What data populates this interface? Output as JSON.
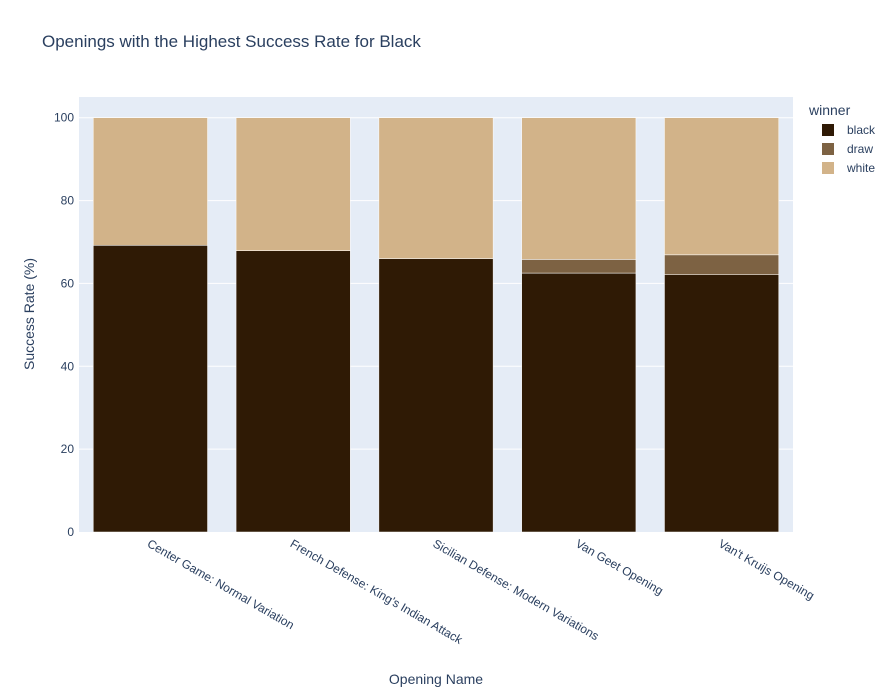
{
  "chart_data": {
    "type": "bar",
    "barmode": "stack",
    "title": "Openings with the Highest Success Rate for Black",
    "xlabel": "Opening Name",
    "ylabel": "Success Rate (%)",
    "ylim": [
      0,
      105
    ],
    "yticks": [
      0,
      20,
      40,
      60,
      80,
      100
    ],
    "grid": true,
    "legend_title": "winner",
    "legend_position": "top-right",
    "categories": [
      "Center Game: Normal Variation",
      "French Defense: King's Indian Attack",
      "Sicilian Defense: Modern Variations",
      "Van Geet Opening",
      "Van't Kruijs Opening"
    ],
    "series": [
      {
        "name": "black",
        "color": "#2f1a05",
        "values": [
          69.2,
          67.9,
          66.0,
          62.5,
          62.1
        ]
      },
      {
        "name": "draw",
        "color": "#7d6243",
        "values": [
          0.0,
          0.0,
          0.0,
          3.3,
          4.8
        ]
      },
      {
        "name": "white",
        "color": "#d2b389",
        "values": [
          30.8,
          32.1,
          34.0,
          34.2,
          33.1
        ]
      }
    ]
  }
}
